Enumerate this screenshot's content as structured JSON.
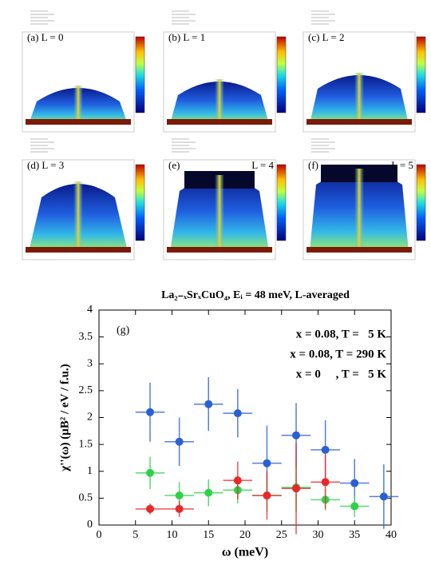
{
  "panels": [
    {
      "label": "(a) L = 0"
    },
    {
      "label": "(b) L = 1"
    },
    {
      "label": "(c) L = 2"
    },
    {
      "label": "(d) L = 3"
    },
    {
      "label": "(e)",
      "label_right": "L = 4"
    },
    {
      "label": "(f)",
      "label_right": "L = 5"
    }
  ],
  "chart_data": {
    "type": "errorbar",
    "title": "La₂₋ₓSrₓCuO₄, Eᵢ = 48 meV, L-averaged",
    "panel_label": "(g)",
    "x_label": "ω (meV)",
    "y_label": "χ''(ω) (μB² / eV / f.u.)",
    "xlim": [
      0,
      40
    ],
    "xticks": [
      0,
      5,
      10,
      15,
      20,
      25,
      30,
      35,
      40
    ],
    "ylim": [
      0,
      4
    ],
    "yticks": [
      0,
      0.5,
      1,
      1.5,
      2,
      2.5,
      3,
      3.5,
      4
    ],
    "series": [
      {
        "name": "x = 0.08, T =   5 K",
        "color": "#2a5fd6",
        "xerr": 2,
        "x": [
          7,
          11,
          15,
          19,
          23,
          27,
          31,
          35,
          39
        ],
        "values": [
          2.1,
          1.55,
          2.25,
          2.08,
          1.15,
          1.67,
          1.4,
          0.78,
          0.53
        ],
        "yerr": [
          0.55,
          0.45,
          0.5,
          0.45,
          0.7,
          0.6,
          0.55,
          0.45,
          0.6
        ]
      },
      {
        "name": "x = 0.08, T = 290 K",
        "color": "#2fd14a",
        "xerr": 2,
        "x": [
          7,
          11,
          15,
          19,
          23,
          27,
          31,
          35
        ],
        "values": [
          0.97,
          0.55,
          0.6,
          0.65,
          0.55,
          0.7,
          0.47,
          0.35
        ],
        "yerr": [
          0.3,
          0.25,
          0.25,
          0.25,
          0.3,
          0.45,
          0.2,
          0.2
        ]
      },
      {
        "name": "x = 0     , T =   5 K",
        "color": "#e8282a",
        "xerr": 2,
        "x": [
          7,
          11,
          19,
          23,
          27,
          31
        ],
        "values": [
          0.3,
          0.3,
          0.83,
          0.55,
          0.68,
          0.8
        ],
        "yerr": [
          0.1,
          0.15,
          0.35,
          0.45,
          0.85,
          0.5
        ]
      }
    ]
  }
}
